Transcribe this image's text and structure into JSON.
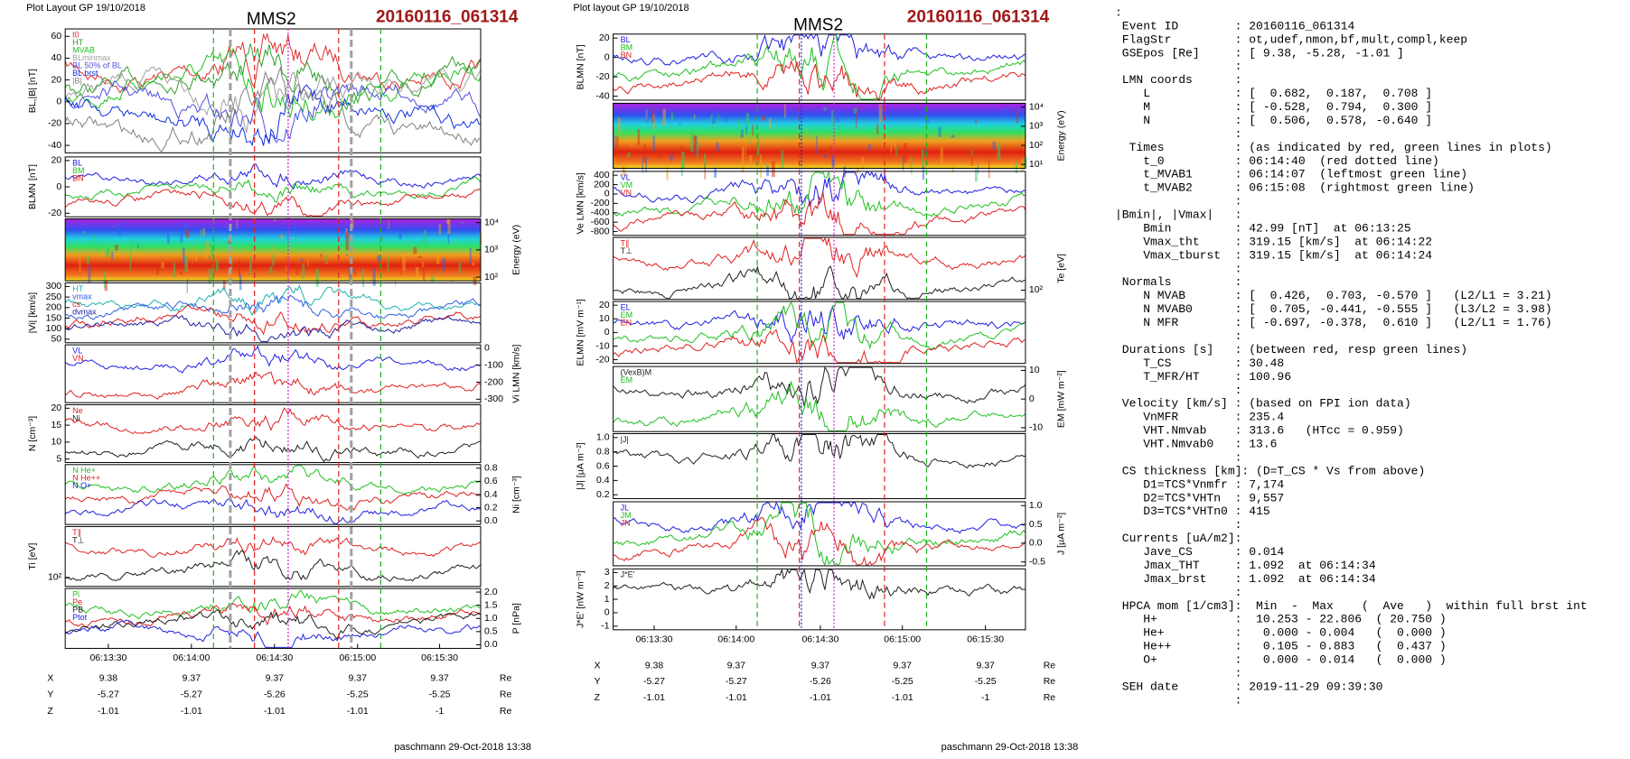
{
  "left": {
    "header": "Plot Layout GP 19/10/2018",
    "title": "MMS2",
    "event": "20160116_061314",
    "panels": [
      {
        "ylabel": "BL,|B| [nT]",
        "yticks": [
          "60",
          "40",
          "20",
          "0",
          "-20",
          "-40"
        ],
        "legend": [
          {
            "name": "t0",
            "color": "#e03030"
          },
          {
            "name": "HT",
            "color": "#30a030"
          },
          {
            "name": "MVAB",
            "color": "#20c020"
          },
          {
            "name": "BLminmax",
            "color": "#a0a0a0"
          },
          {
            "name": "BL 50% of BL",
            "color": "#5050e0"
          },
          {
            "name": "BL brst",
            "color": "#1030e0"
          },
          {
            "name": "|B|",
            "color": "#808080"
          }
        ]
      },
      {
        "ylabel": "BLMN [nT]",
        "yticks": [
          "20",
          "0",
          "-20"
        ],
        "legend": [
          {
            "name": "BL",
            "color": "#2020e0"
          },
          {
            "name": "BM",
            "color": "#20c020"
          },
          {
            "name": "BN",
            "color": "#e02020"
          }
        ]
      },
      {
        "ylabel": "Energy (eV)",
        "yticks": [
          "10⁴",
          "10³",
          "10²"
        ],
        "legend": []
      },
      {
        "ylabel": "|Vi| [km/s]",
        "yticks": [
          "300",
          "250",
          "200",
          "150",
          "100",
          "50"
        ],
        "legend": [
          {
            "name": "HT",
            "color": "#20b0b0"
          },
          {
            "name": "vmax",
            "color": "#3060e0"
          },
          {
            "name": "cs",
            "color": "#e02020"
          },
          {
            "name": "dvmax",
            "color": "#2020a0"
          }
        ]
      },
      {
        "ylabel": "Vi LMN [km/s]",
        "yticks": [
          "0",
          "-100",
          "-200",
          "-300"
        ],
        "legend": [
          {
            "name": "VL",
            "color": "#2020e0"
          },
          {
            "name": "VN",
            "color": "#e02020"
          }
        ]
      },
      {
        "ylabel": "N [cm⁻³]",
        "yticks": [
          "20",
          "15",
          "10",
          "5"
        ],
        "legend": [
          {
            "name": "Ne",
            "color": "#e02020"
          },
          {
            "name": "Ni",
            "color": "#202020"
          }
        ]
      },
      {
        "ylabel": "Ni [cm⁻³]",
        "yticks": [
          "0.8",
          "0.6",
          "0.4",
          "0.2",
          "0.0"
        ],
        "legend": [
          {
            "name": "N He+",
            "color": "#20c020"
          },
          {
            "name": "N He++",
            "color": "#e02020"
          },
          {
            "name": "N O+",
            "color": "#2020e0"
          }
        ]
      },
      {
        "ylabel": "Ti [eV]",
        "yticks": [
          "10²"
        ],
        "legend": [
          {
            "name": "T∥",
            "color": "#e02020"
          },
          {
            "name": "T⊥",
            "color": "#202020"
          }
        ]
      },
      {
        "ylabel": "P [nPa]",
        "yticks": [
          "2.0",
          "1.5",
          "1.0",
          "0.5",
          "0.0"
        ],
        "legend": [
          {
            "name": "Pi",
            "color": "#20c020"
          },
          {
            "name": "Pe",
            "color": "#e02020"
          },
          {
            "name": "PB",
            "color": "#202020"
          },
          {
            "name": "Ptot",
            "color": "#2020e0"
          }
        ]
      }
    ],
    "xticks": [
      "06:13:30",
      "06:14:00",
      "06:14:30",
      "06:15:00",
      "06:15:30"
    ],
    "ephem": [
      [
        "X",
        "9.38",
        "9.37",
        "9.37",
        "9.37",
        "9.37",
        "Re"
      ],
      [
        "Y",
        "-5.27",
        "-5.27",
        "-5.26",
        "-5.25",
        "-5.25",
        "Re"
      ],
      [
        "Z",
        "-1.01",
        "-1.01",
        "-1.01",
        "-1.01",
        "-1",
        "Re"
      ]
    ],
    "footer": "paschmann 29-Oct-2018 13:38"
  },
  "middle": {
    "header": "Plot layout GP 19/10/2018",
    "title": "MMS2",
    "event": "20160116_061314",
    "panels": [
      {
        "ylabel": "BLMN [nT]",
        "yticks": [
          "20",
          "0",
          "-20",
          "-40"
        ],
        "legend": [
          {
            "name": "BL",
            "color": "#2020e0"
          },
          {
            "name": "BM",
            "color": "#20c020"
          },
          {
            "name": "BN",
            "color": "#e02020"
          }
        ]
      },
      {
        "ylabel": "Energy (eV)",
        "yticks": [
          "10⁴",
          "10³",
          "10²",
          "10¹"
        ],
        "legend": []
      },
      {
        "ylabel": "Ve LMN [km/s]",
        "yticks": [
          "400",
          "200",
          "0",
          "-200",
          "-400",
          "-600",
          "-800"
        ],
        "legend": [
          {
            "name": "VL",
            "color": "#2020e0"
          },
          {
            "name": "VM",
            "color": "#20c020"
          },
          {
            "name": "VN",
            "color": "#e02020"
          }
        ]
      },
      {
        "ylabel": "Te [eV]",
        "yticks": [
          "10²"
        ],
        "legend": [
          {
            "name": "T∥",
            "color": "#e02020"
          },
          {
            "name": "T⊥",
            "color": "#202020"
          }
        ]
      },
      {
        "ylabel": "ELMN [mV m⁻¹]",
        "yticks": [
          "20",
          "10",
          "0",
          "-10",
          "-20"
        ],
        "legend": [
          {
            "name": "EL",
            "color": "#2020e0"
          },
          {
            "name": "EM",
            "color": "#20c020"
          },
          {
            "name": "EN",
            "color": "#e02020"
          }
        ]
      },
      {
        "ylabel": "EM [mW m⁻²]",
        "yticks": [
          "10",
          "0",
          "-10"
        ],
        "legend": [
          {
            "name": "(VexB)M",
            "color": "#202020"
          },
          {
            "name": "EM",
            "color": "#20c020"
          }
        ]
      },
      {
        "ylabel": "|J| [μA m⁻²]",
        "yticks": [
          "1.0",
          "0.8",
          "0.6",
          "0.4",
          "0.2"
        ],
        "legend": [
          {
            "name": "|J|",
            "color": "#202020"
          }
        ]
      },
      {
        "ylabel": "J [μA m⁻²]",
        "yticks": [
          "1.0",
          "0.5",
          "0.0",
          "-0.5"
        ],
        "legend": [
          {
            "name": "JL",
            "color": "#2020e0"
          },
          {
            "name": "JM",
            "color": "#20c020"
          },
          {
            "name": "JN",
            "color": "#e02020"
          }
        ]
      },
      {
        "ylabel": "J*E' [nW m⁻³]",
        "yticks": [
          "3",
          "2",
          "1",
          "0",
          "-1"
        ],
        "legend": [
          {
            "name": "J*E'",
            "color": "#202020"
          }
        ]
      }
    ],
    "xticks": [
      "06:13:30",
      "06:14:00",
      "06:14:30",
      "06:15:00",
      "06:15:30"
    ],
    "ephem": [
      [
        "X",
        "9.38",
        "9.37",
        "9.37",
        "9.37",
        "9.37",
        "Re"
      ],
      [
        "Y",
        "-5.27",
        "-5.27",
        "-5.26",
        "-5.25",
        "-5.25",
        "Re"
      ],
      [
        "Z",
        "-1.01",
        "-1.01",
        "-1.01",
        "-1.01",
        "-1",
        "Re"
      ]
    ],
    "footer": "paschmann 29-Oct-2018 13:38"
  },
  "listing": [
    ":",
    " Event ID        : 20160116_061314",
    " FlagStr         : ot,udef,nmon,bf,mult,compl,keep",
    " GSEpos [Re]     : [ 9.38, -5.28, -1.01 ]",
    "                 :",
    " LMN coords      :",
    "    L            : [  0.682,  0.187,  0.708 ]",
    "    M            : [ -0.528,  0.794,  0.300 ]",
    "    N            : [  0.506,  0.578, -0.640 ]",
    "                 :",
    "  Times          : (as indicated by red, green lines in plots)",
    "    t_0          : 06:14:40  (red dotted line)",
    "    t_MVAB1      : 06:14:07  (leftmost green line)",
    "    t_MVAB2      : 06:15:08  (rightmost green line)",
    "                 :",
    "|Bmin|, |Vmax|   :",
    "    Bmin         : 42.99 [nT]  at 06:13:25",
    "    Vmax_tht     : 319.15 [km/s]  at 06:14:22",
    "    Vmax_tburst  : 319.15 [km/s]  at 06:14:24",
    "                 :",
    " Normals         :",
    "    N MVAB       : [  0.426,  0.703, -0.570 ]   (L2/L1 = 3.21)",
    "    N MVAB0      : [  0.705, -0.441, -0.555 ]   (L3/L2 = 3.98)",
    "    N MFR        : [ -0.697, -0.378,  0.610 ]   (L2/L1 = 1.76)",
    "                 :",
    " Durations [s]   : (between red, resp green lines)",
    "    T_CS         : 30.48",
    "    T_MFR/HT     : 100.96",
    "                 :",
    " Velocity [km/s] : (based on FPI ion data)",
    "    VnMFR        : 235.4",
    "    VHT.Nmvab    : 313.6   (HTcc = 0.959)",
    "    VHT.Nmvab0   : 13.6",
    "                 :",
    " CS thickness [km]: (D=T_CS * Vs from above)",
    "    D1=TCS*Vnmfr : 7,174",
    "    D2=TCS*VHTn  : 9,557",
    "    D3=TCS*VHTn0 : 415",
    "                 :",
    " Currents [uA/m2]:",
    "    Jave_CS      : 0.014",
    "    Jmax_THT     : 1.092  at 06:14:34",
    "    Jmax_brst    : 1.092  at 06:14:34",
    "                 :",
    " HPCA mom [1/cm3]:  Min  -  Max    (  Ave   )  within full brst int",
    "    H+           :  10.253 - 22.806  ( 20.750 )",
    "    He+          :   0.000 - 0.004   (  0.000 )",
    "    He++         :   0.105 - 0.883   (  0.437 )",
    "    O+           :   0.000 - 0.014   (  0.000 )",
    "                 :",
    " SEH date        : 2019-11-29 09:39:30",
    "                 :"
  ]
}
